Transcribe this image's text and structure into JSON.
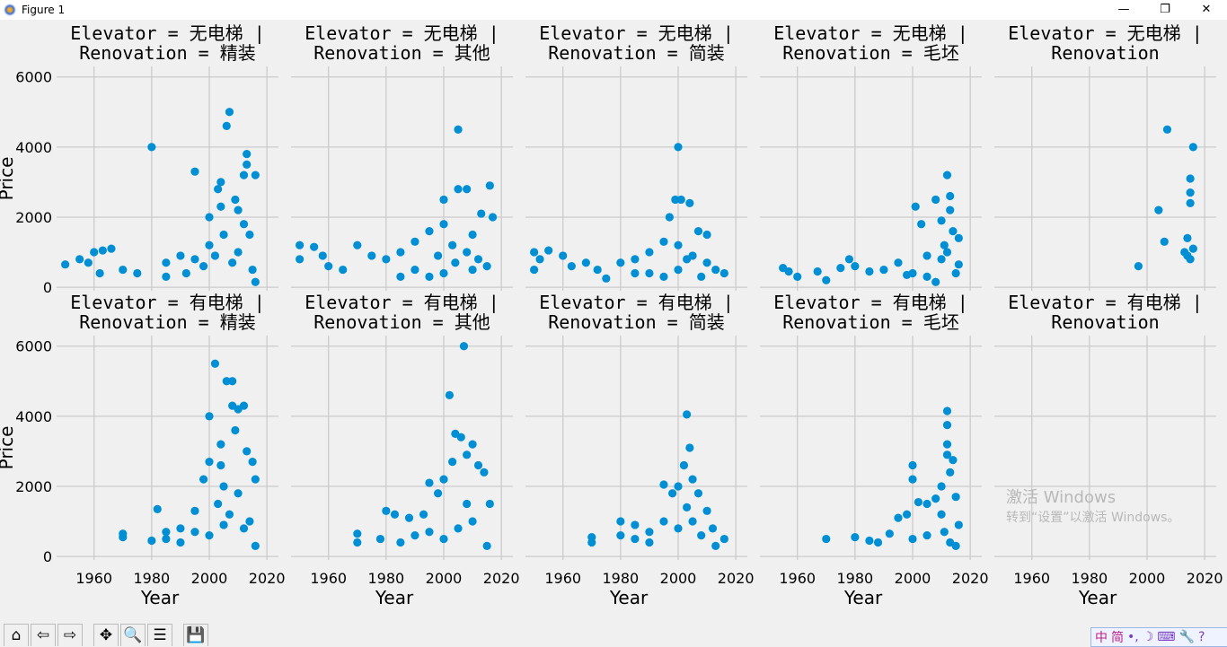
{
  "window": {
    "title": "Figure 1",
    "minimize": "—",
    "maximize": "❐",
    "close": "✕"
  },
  "toolbar": [
    {
      "name": "home-button",
      "glyph": "⌂"
    },
    {
      "name": "back-button",
      "glyph": "⇦"
    },
    {
      "name": "forward-button",
      "glyph": "⇨"
    },
    {
      "name": "pan-button",
      "glyph": "✥"
    },
    {
      "name": "zoom-button",
      "glyph": "🔍"
    },
    {
      "name": "configure-subplots-button",
      "glyph": "☰"
    },
    {
      "name": "save-button",
      "glyph": "💾"
    }
  ],
  "watermark": {
    "line1": "激活 Windows",
    "line2": "转到“设置”以激活 Windows。"
  },
  "ime": {
    "items": [
      "中",
      "简",
      "•,",
      "☽",
      "⌨",
      "🔧",
      "?"
    ]
  },
  "colors": {
    "marker": "#008fd5",
    "background": "#f0f0f0",
    "grid": "#cbcbcb"
  },
  "chart_data": {
    "type": "scatter",
    "xlabel": "Year",
    "ylabel": "Price",
    "xlim": [
      1947,
      2024
    ],
    "ylim": [
      -100,
      6300
    ],
    "xticks": [
      1960,
      1980,
      2000,
      2020
    ],
    "yticks": [
      0,
      2000,
      4000,
      6000
    ],
    "grid": true,
    "panels": [
      {
        "title": "Elevator = 无电梯 | Renovation = 精装",
        "row": 0,
        "col": 0,
        "points": [
          [
            1980,
            4000
          ],
          [
            1995,
            3300
          ],
          [
            2006,
            4600
          ],
          [
            2007,
            5000
          ],
          [
            2013,
            3800
          ],
          [
            2013,
            3500
          ],
          [
            2012,
            3200
          ],
          [
            2016,
            3200
          ],
          [
            2004,
            3000
          ],
          [
            2003,
            2800
          ],
          [
            2009,
            2500
          ],
          [
            2000,
            2000
          ],
          [
            1950,
            650
          ],
          [
            1955,
            800
          ],
          [
            1958,
            700
          ],
          [
            1960,
            1000
          ],
          [
            1963,
            1050
          ],
          [
            1966,
            1100
          ],
          [
            1962,
            400
          ],
          [
            1970,
            500
          ],
          [
            1975,
            400
          ],
          [
            1985,
            700
          ],
          [
            1990,
            900
          ],
          [
            1995,
            800
          ],
          [
            2000,
            1200
          ],
          [
            2005,
            1500
          ],
          [
            2010,
            1000
          ],
          [
            2015,
            500
          ],
          [
            2016,
            150
          ],
          [
            1985,
            300
          ],
          [
            1992,
            400
          ],
          [
            1998,
            600
          ],
          [
            2002,
            900
          ],
          [
            2008,
            700
          ],
          [
            2012,
            1800
          ],
          [
            2014,
            1500
          ],
          [
            2004,
            2300
          ],
          [
            2010,
            2200
          ]
        ]
      },
      {
        "title": "Elevator = 无电梯 | Renovation = 其他",
        "row": 0,
        "col": 1,
        "points": [
          [
            1950,
            1200
          ],
          [
            1950,
            800
          ],
          [
            1955,
            1150
          ],
          [
            1958,
            900
          ],
          [
            1960,
            600
          ],
          [
            1965,
            500
          ],
          [
            1970,
            1200
          ],
          [
            1975,
            900
          ],
          [
            1980,
            800
          ],
          [
            1985,
            1000
          ],
          [
            1990,
            1300
          ],
          [
            1995,
            1600
          ],
          [
            2000,
            2500
          ],
          [
            2005,
            4500
          ],
          [
            2005,
            2800
          ],
          [
            2008,
            2800
          ],
          [
            2016,
            2900
          ],
          [
            2017,
            2000
          ],
          [
            2013,
            2100
          ],
          [
            2010,
            1500
          ],
          [
            2000,
            1800
          ],
          [
            2003,
            1200
          ],
          [
            2008,
            1000
          ],
          [
            1990,
            500
          ],
          [
            1995,
            300
          ],
          [
            2000,
            400
          ],
          [
            2010,
            500
          ],
          [
            1985,
            300
          ],
          [
            2012,
            800
          ],
          [
            2015,
            600
          ],
          [
            1998,
            900
          ],
          [
            2004,
            700
          ]
        ]
      },
      {
        "title": "Elevator = 无电梯 | Renovation = 简装",
        "row": 0,
        "col": 2,
        "points": [
          [
            1950,
            1000
          ],
          [
            1950,
            500
          ],
          [
            1952,
            800
          ],
          [
            1955,
            1050
          ],
          [
            1960,
            900
          ],
          [
            1963,
            600
          ],
          [
            1968,
            700
          ],
          [
            1972,
            500
          ],
          [
            1980,
            700
          ],
          [
            1985,
            800
          ],
          [
            1990,
            1000
          ],
          [
            1995,
            1300
          ],
          [
            1997,
            2000
          ],
          [
            1999,
            2500
          ],
          [
            2000,
            4000
          ],
          [
            2001,
            2500
          ],
          [
            2004,
            2400
          ],
          [
            2007,
            1600
          ],
          [
            2010,
            1500
          ],
          [
            2013,
            500
          ],
          [
            2016,
            400
          ],
          [
            2000,
            1200
          ],
          [
            2005,
            900
          ],
          [
            1990,
            400
          ],
          [
            1995,
            300
          ],
          [
            2000,
            500
          ],
          [
            2008,
            300
          ],
          [
            1985,
            400
          ],
          [
            1975,
            250
          ],
          [
            2003,
            800
          ],
          [
            2010,
            700
          ]
        ]
      },
      {
        "title": "Elevator = 无电梯 | Renovation = 毛坯",
        "row": 0,
        "col": 3,
        "points": [
          [
            1955,
            550
          ],
          [
            1957,
            450
          ],
          [
            1960,
            300
          ],
          [
            1967,
            450
          ],
          [
            1970,
            200
          ],
          [
            1975,
            550
          ],
          [
            1978,
            800
          ],
          [
            1980,
            600
          ],
          [
            1985,
            450
          ],
          [
            1990,
            500
          ],
          [
            1995,
            700
          ],
          [
            2000,
            400
          ],
          [
            2001,
            2300
          ],
          [
            2003,
            1800
          ],
          [
            2005,
            900
          ],
          [
            2008,
            2500
          ],
          [
            2010,
            1900
          ],
          [
            2011,
            1200
          ],
          [
            2012,
            3200
          ],
          [
            2013,
            2600
          ],
          [
            2013,
            2200
          ],
          [
            2014,
            1600
          ],
          [
            2016,
            1400
          ],
          [
            2016,
            650
          ],
          [
            2010,
            800
          ],
          [
            2005,
            300
          ],
          [
            1998,
            350
          ],
          [
            2012,
            1000
          ],
          [
            2015,
            400
          ],
          [
            2008,
            150
          ]
        ]
      },
      {
        "title": "Elevator = 无电梯 | Renovation",
        "row": 0,
        "col": 4,
        "points": [
          [
            1997,
            600
          ],
          [
            2004,
            2200
          ],
          [
            2006,
            1300
          ],
          [
            2007,
            4500
          ],
          [
            2013,
            1000
          ],
          [
            2014,
            1400
          ],
          [
            2015,
            3100
          ],
          [
            2015,
            2700
          ],
          [
            2015,
            2400
          ],
          [
            2016,
            4000
          ],
          [
            2015,
            800
          ],
          [
            2016,
            1100
          ],
          [
            2014,
            900
          ]
        ]
      },
      {
        "title": "Elevator = 有电梯 | Renovation = 精装",
        "row": 1,
        "col": 0,
        "points": [
          [
            1970,
            550
          ],
          [
            1970,
            650
          ],
          [
            1980,
            450
          ],
          [
            1982,
            1350
          ],
          [
            1985,
            700
          ],
          [
            1990,
            800
          ],
          [
            1995,
            1300
          ],
          [
            1998,
            2200
          ],
          [
            2000,
            2700
          ],
          [
            2000,
            4000
          ],
          [
            2002,
            5500
          ],
          [
            2004,
            3200
          ],
          [
            2006,
            5000
          ],
          [
            2008,
            5000
          ],
          [
            2008,
            4300
          ],
          [
            2010,
            4200
          ],
          [
            2012,
            4300
          ],
          [
            2013,
            3000
          ],
          [
            2015,
            2700
          ],
          [
            2016,
            2200
          ],
          [
            2010,
            1800
          ],
          [
            2005,
            2000
          ],
          [
            2003,
            1500
          ],
          [
            2007,
            1200
          ],
          [
            2012,
            800
          ],
          [
            2016,
            300
          ],
          [
            2000,
            600
          ],
          [
            1990,
            400
          ],
          [
            1985,
            500
          ],
          [
            1995,
            700
          ],
          [
            2005,
            900
          ],
          [
            2014,
            1000
          ],
          [
            2009,
            3600
          ],
          [
            2004,
            2600
          ]
        ]
      },
      {
        "title": "Elevator = 有电梯 | Renovation = 其他",
        "row": 1,
        "col": 1,
        "points": [
          [
            1970,
            650
          ],
          [
            1970,
            400
          ],
          [
            1978,
            500
          ],
          [
            1980,
            1300
          ],
          [
            1983,
            1200
          ],
          [
            1988,
            1100
          ],
          [
            1993,
            1200
          ],
          [
            1995,
            2100
          ],
          [
            1998,
            1800
          ],
          [
            2000,
            2200
          ],
          [
            2002,
            4600
          ],
          [
            2004,
            3500
          ],
          [
            2006,
            3400
          ],
          [
            2007,
            6000
          ],
          [
            2008,
            2900
          ],
          [
            2010,
            3200
          ],
          [
            2012,
            2600
          ],
          [
            2014,
            2400
          ],
          [
            2016,
            1500
          ],
          [
            2003,
            2700
          ],
          [
            2010,
            1000
          ],
          [
            2005,
            800
          ],
          [
            2000,
            500
          ],
          [
            1990,
            600
          ],
          [
            1985,
            400
          ],
          [
            2015,
            300
          ],
          [
            2008,
            1500
          ],
          [
            1995,
            700
          ]
        ]
      },
      {
        "title": "Elevator = 有电梯 | Renovation = 简装",
        "row": 1,
        "col": 2,
        "points": [
          [
            1970,
            550
          ],
          [
            1970,
            400
          ],
          [
            1980,
            600
          ],
          [
            1980,
            1000
          ],
          [
            1985,
            900
          ],
          [
            1990,
            700
          ],
          [
            1995,
            2050
          ],
          [
            1998,
            1800
          ],
          [
            2000,
            2000
          ],
          [
            2002,
            2600
          ],
          [
            2003,
            4050
          ],
          [
            2004,
            3100
          ],
          [
            2005,
            2200
          ],
          [
            2007,
            1800
          ],
          [
            2010,
            1300
          ],
          [
            2012,
            800
          ],
          [
            2016,
            500
          ],
          [
            1990,
            400
          ],
          [
            2000,
            800
          ],
          [
            2005,
            1000
          ],
          [
            2008,
            600
          ],
          [
            2013,
            300
          ],
          [
            1985,
            500
          ],
          [
            1995,
            1000
          ],
          [
            2003,
            1400
          ]
        ]
      },
      {
        "title": "Elevator = 有电梯 | Renovation = 毛坯",
        "row": 1,
        "col": 3,
        "points": [
          [
            1970,
            500
          ],
          [
            1980,
            550
          ],
          [
            1985,
            450
          ],
          [
            1988,
            400
          ],
          [
            1992,
            650
          ],
          [
            1995,
            1100
          ],
          [
            1998,
            1200
          ],
          [
            2000,
            2600
          ],
          [
            2000,
            2200
          ],
          [
            2002,
            1550
          ],
          [
            2005,
            1500
          ],
          [
            2008,
            1650
          ],
          [
            2010,
            2000
          ],
          [
            2012,
            4150
          ],
          [
            2012,
            3750
          ],
          [
            2012,
            3200
          ],
          [
            2012,
            2900
          ],
          [
            2013,
            2400
          ],
          [
            2014,
            2750
          ],
          [
            2015,
            1700
          ],
          [
            2016,
            900
          ],
          [
            2010,
            1200
          ],
          [
            2005,
            600
          ],
          [
            2000,
            500
          ],
          [
            2015,
            300
          ],
          [
            2011,
            700
          ],
          [
            2013,
            400
          ]
        ]
      },
      {
        "title": "Elevator = 有电梯 | Renovation",
        "row": 1,
        "col": 4,
        "points": []
      }
    ]
  }
}
